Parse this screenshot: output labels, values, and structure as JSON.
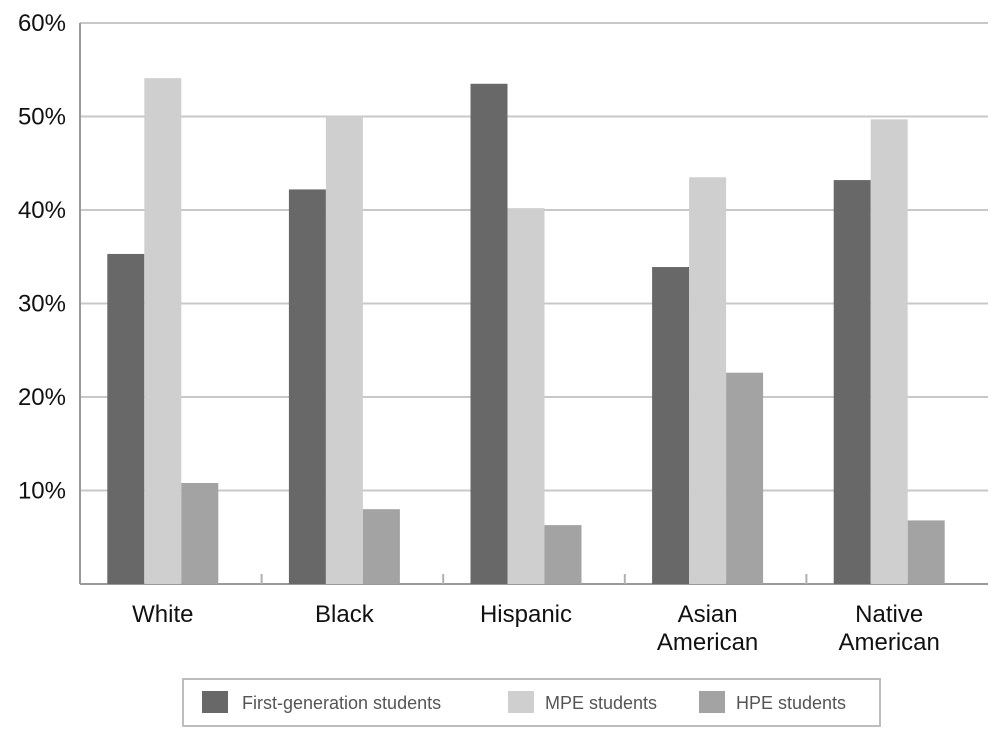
{
  "chart_data": {
    "type": "bar",
    "categories": [
      [
        "White"
      ],
      [
        "Black"
      ],
      [
        "Hispanic"
      ],
      [
        "Asian",
        "American"
      ],
      [
        "Native",
        "American"
      ]
    ],
    "series": [
      {
        "name": "First-generation students",
        "color": "#686868",
        "values": [
          35.3,
          42.2,
          53.5,
          33.9,
          43.2
        ]
      },
      {
        "name": "MPE students",
        "color": "#cfcfcf",
        "values": [
          54.1,
          50.0,
          40.2,
          43.5,
          49.7
        ]
      },
      {
        "name": "HPE students",
        "color": "#a3a3a3",
        "values": [
          10.8,
          8.0,
          6.3,
          22.6,
          6.8
        ]
      }
    ],
    "yticks": [
      "10%",
      "20%",
      "30%",
      "40%",
      "50%",
      "60%"
    ],
    "ylim": [
      0,
      60
    ],
    "grid": true,
    "legend_position": "bottom"
  }
}
